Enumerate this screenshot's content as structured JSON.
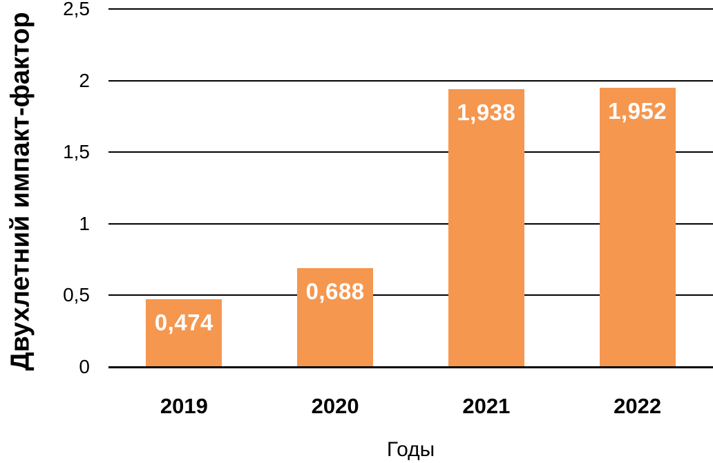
{
  "chart_data": {
    "type": "bar",
    "title": "",
    "categories": [
      "2019",
      "2020",
      "2021",
      "2022"
    ],
    "values": [
      0.474,
      0.688,
      1.938,
      1.952
    ],
    "value_labels": [
      "0,474",
      "0,688",
      "1,938",
      "1,952"
    ],
    "xlabel": "Годы",
    "ylabel": "Двухлетний импакт-фактор",
    "ylim": [
      0,
      2.5
    ],
    "yticks": [
      0,
      0.5,
      1,
      1.5,
      2,
      2.5
    ],
    "ytick_labels": [
      "0",
      "0,5",
      "1",
      "1,5",
      "2",
      "2,5"
    ],
    "grid": "horizontal",
    "legend": "none",
    "bar_color": "#F5974F",
    "value_label_color": "#FFFFFF",
    "axis_color": "#000000",
    "text_color": "#000000",
    "background_color": "#FFFFFF"
  }
}
